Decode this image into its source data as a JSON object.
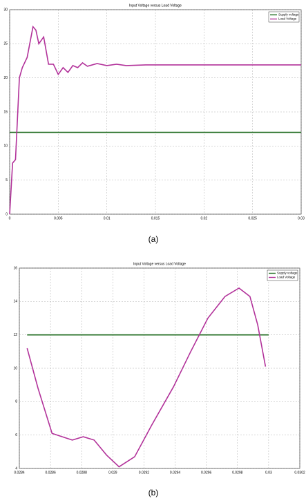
{
  "chart_data": [
    {
      "type": "line",
      "title": "Input Voltage versus Load Voltage",
      "xlim": [
        0,
        0.03
      ],
      "xticks": [
        0,
        0.005,
        0.01,
        0.015,
        0.02,
        0.025,
        0.03
      ],
      "ylim": [
        0,
        30
      ],
      "yticks": [
        0,
        5,
        10,
        15,
        20,
        25,
        30
      ],
      "grid": true,
      "legend": "upper right",
      "series": [
        {
          "name": "Supply voltage",
          "color": "#1f6b1f",
          "x": [
            0,
            0.03
          ],
          "values": [
            12,
            12
          ]
        },
        {
          "name": "Load Voltage",
          "color": "#b2329a",
          "x": [
            0,
            0.0003,
            0.0006,
            0.001,
            0.0013,
            0.0018,
            0.0024,
            0.0027,
            0.003,
            0.0035,
            0.004,
            0.0045,
            0.005,
            0.0055,
            0.006,
            0.0065,
            0.007,
            0.0075,
            0.008,
            0.009,
            0.01,
            0.011,
            0.012,
            0.014,
            0.03
          ],
          "values": [
            0,
            7.5,
            8,
            20,
            21.5,
            23,
            27.5,
            27,
            25,
            26,
            22,
            22,
            20.5,
            21.5,
            20.8,
            21.8,
            21.5,
            22.2,
            21.7,
            22.1,
            21.8,
            22,
            21.8,
            21.9,
            21.9
          ]
        }
      ]
    },
    {
      "type": "line",
      "title": "Input Voltage versus Load Voltage",
      "xlim": [
        0.0284,
        0.0302
      ],
      "xticks": [
        0.0284,
        0.0286,
        0.0288,
        0.029,
        0.0292,
        0.0294,
        0.0296,
        0.0298,
        0.03,
        0.0302
      ],
      "ylim": [
        4,
        16
      ],
      "yticks": [
        4,
        6,
        8,
        10,
        12,
        14,
        16
      ],
      "grid": true,
      "legend": "upper right",
      "series": [
        {
          "name": "Supply voltage",
          "color": "#1f6b1f",
          "x": [
            0.02845,
            0.03
          ],
          "values": [
            12,
            12
          ]
        },
        {
          "name": "Load Voltage",
          "color": "#b2329a",
          "x": [
            0.02845,
            0.02852,
            0.02861,
            0.02874,
            0.02881,
            0.02888,
            0.02896,
            0.02904,
            0.02914,
            0.02925,
            0.02939,
            0.0295,
            0.02961,
            0.02972,
            0.02981,
            0.02988,
            0.02993,
            0.02998
          ],
          "values": [
            11.2,
            8.8,
            6.1,
            5.7,
            5.9,
            5.7,
            4.8,
            4.1,
            4.7,
            6.6,
            8.9,
            11.0,
            13.0,
            14.3,
            14.8,
            14.3,
            12.6,
            10.1
          ]
        }
      ]
    }
  ],
  "captions": [
    "(a)",
    "(b)"
  ]
}
